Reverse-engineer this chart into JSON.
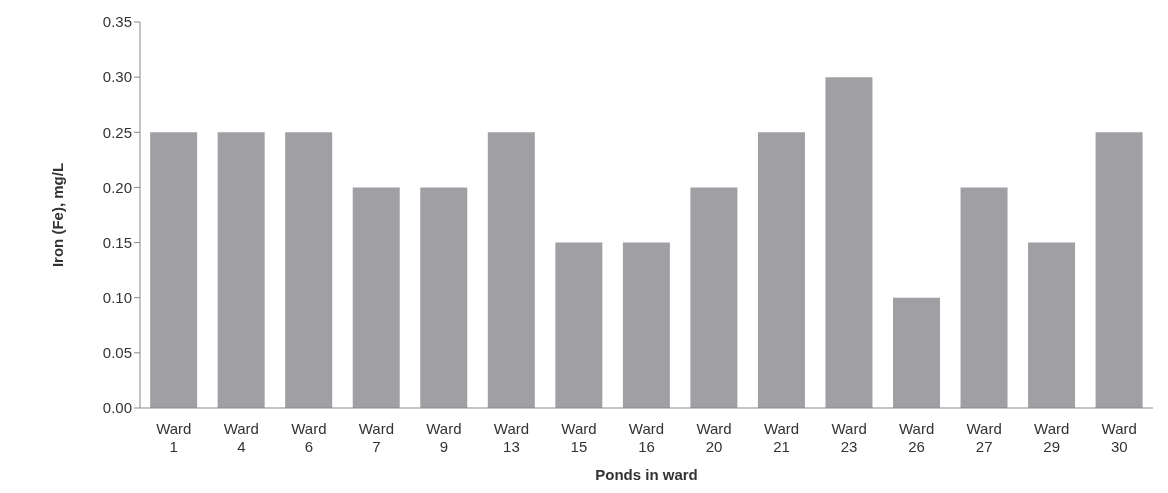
{
  "chart_data": {
    "type": "bar",
    "xlabel": "Ponds in ward",
    "ylabel": "Iron (Fe), mg/L",
    "categories": [
      "Ward 1",
      "Ward 4",
      "Ward 6",
      "Ward 7",
      "Ward 9",
      "Ward 13",
      "Ward 15",
      "Ward 16",
      "Ward 20",
      "Ward 21",
      "Ward 23",
      "Ward 26",
      "Ward 27",
      "Ward 29",
      "Ward 30"
    ],
    "values": [
      0.25,
      0.25,
      0.25,
      0.2,
      0.2,
      0.25,
      0.15,
      0.15,
      0.2,
      0.25,
      0.3,
      0.1,
      0.2,
      0.15,
      0.25
    ],
    "color": "#a0a0a4",
    "ylim": [
      0,
      0.35
    ],
    "yticks": [
      {
        "value": 0,
        "label": "0.00"
      },
      {
        "value": 0.05,
        "label": "0.05"
      },
      {
        "value": 0.1,
        "label": "0.10"
      },
      {
        "value": 0.15,
        "label": "0.15"
      },
      {
        "value": 0.2,
        "label": "0.20"
      },
      {
        "value": 0.25,
        "label": "0.25"
      },
      {
        "value": 0.3,
        "label": "0.30"
      },
      {
        "value": 0.35,
        "label": "0.35"
      }
    ],
    "grid": false,
    "legend": false
  }
}
